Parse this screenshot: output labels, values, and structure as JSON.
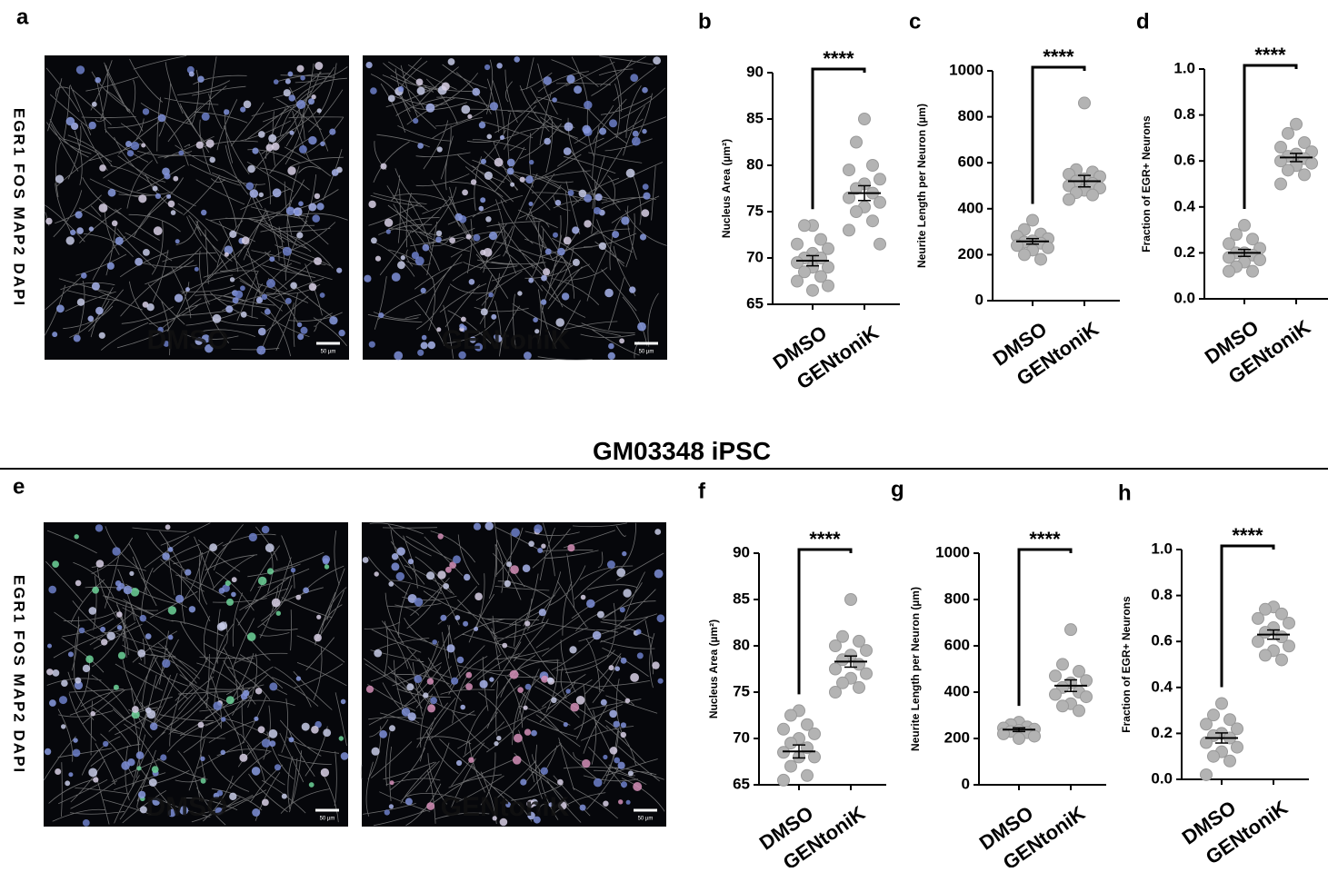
{
  "panel_labels": [
    "a",
    "b",
    "c",
    "d",
    "e",
    "f",
    "g",
    "h"
  ],
  "section_title": "GM03348 iPSC",
  "images": [
    {
      "channels": "EGR1 FOS MAP2 DAPI",
      "tiles": [
        {
          "label": "DMSO",
          "scale": "50 µm"
        },
        {
          "label": "GENtoniK",
          "scale": "50 µm"
        }
      ]
    },
    {
      "channels": "EGR1 FOS MAP2 DAPI",
      "tiles": [
        {
          "label": "DMSO",
          "scale": "50 µm"
        },
        {
          "label": "GENtoniK",
          "scale": "50 µm"
        }
      ]
    }
  ],
  "chart_data": [
    {
      "type": "dot",
      "y_label": "Nucleus Area (µm²)",
      "categories": [
        "DMSO",
        "GENtoniK"
      ],
      "color": "#b3b3b3",
      "annotation": "****",
      "points": [
        [
          73.5,
          73.5,
          72,
          71.5,
          71,
          70.5,
          70,
          70,
          69.5,
          69,
          69,
          68.5,
          68,
          67.5,
          67,
          66.5
        ],
        [
          85,
          82.5,
          80,
          79.5,
          78.5,
          78,
          77.5,
          77,
          76.5,
          76,
          75.5,
          75,
          74,
          73,
          71.5
        ]
      ],
      "mean": [
        69.7,
        77
      ],
      "sem": [
        0.55,
        0.8
      ],
      "ylim": [
        65,
        90
      ],
      "yticks": [
        65,
        70,
        75,
        80,
        85,
        90
      ]
    },
    {
      "type": "dot",
      "y_label": "Neurite Length per Neuron (µm)",
      "categories": [
        "DMSO",
        "GENtoniK"
      ],
      "color": "#b3b3b3",
      "annotation": "****",
      "points": [
        [
          350,
          310,
          290,
          280,
          270,
          260,
          255,
          250,
          240,
          230,
          220,
          200,
          180
        ],
        [
          860,
          570,
          560,
          550,
          540,
          530,
          520,
          510,
          500,
          490,
          480,
          470,
          460,
          440
        ]
      ],
      "mean": [
        258,
        520
      ],
      "sem": [
        12,
        25
      ],
      "ylim": [
        0,
        1000
      ],
      "yticks": [
        0,
        200,
        400,
        600,
        800,
        1000
      ]
    },
    {
      "type": "dot",
      "y_label": "Fraction of EGR+ Neurons",
      "categories": [
        "DMSO",
        "GENtoniK"
      ],
      "color": "#b3b3b3",
      "annotation": "****",
      "points": [
        [
          0.32,
          0.28,
          0.26,
          0.24,
          0.22,
          0.2,
          0.2,
          0.19,
          0.18,
          0.17,
          0.16,
          0.14,
          0.12,
          0.12
        ],
        [
          0.76,
          0.72,
          0.68,
          0.66,
          0.64,
          0.63,
          0.62,
          0.61,
          0.6,
          0.59,
          0.58,
          0.56,
          0.54,
          0.5
        ]
      ],
      "mean": [
        0.2,
        0.615
      ],
      "sem": [
        0.015,
        0.018
      ],
      "ylim": [
        0,
        1
      ],
      "yticks": [
        {
          "value": 0,
          "label": "0.0"
        },
        0.2,
        0.4,
        0.6,
        0.8,
        {
          "value": 1,
          "label": "1.0"
        }
      ]
    },
    {
      "type": "dot",
      "y_label": "Nucleus Area (µm²)",
      "categories": [
        "DMSO",
        "GENtoniK"
      ],
      "color": "#b3b3b3",
      "annotation": "****",
      "points": [
        [
          73,
          72.5,
          71.5,
          71,
          70.5,
          70,
          69.5,
          69,
          68.5,
          68,
          68,
          67,
          66,
          65.5
        ],
        [
          85,
          81,
          80.5,
          80,
          79.5,
          79,
          78.5,
          78,
          77.5,
          77,
          76.5,
          76,
          75.5,
          75
        ]
      ],
      "mean": [
        68.6,
        78.3
      ],
      "sem": [
        0.7,
        0.6
      ],
      "ylim": [
        65,
        90
      ],
      "yticks": [
        65,
        70,
        75,
        80,
        85,
        90
      ]
    },
    {
      "type": "dot",
      "y_label": "Neurite Length per Neuron (µm)",
      "categories": [
        "DMSO",
        "GENtoniK"
      ],
      "color": "#b3b3b3",
      "annotation": "****",
      "points": [
        [
          270,
          260,
          250,
          245,
          240,
          235,
          230,
          225,
          220,
          210,
          200
        ],
        [
          670,
          520,
          490,
          470,
          450,
          440,
          420,
          400,
          390,
          380,
          350,
          340,
          320
        ]
      ],
      "mean": [
        238,
        428
      ],
      "sem": [
        8,
        25
      ],
      "ylim": [
        0,
        1000
      ],
      "yticks": [
        0,
        200,
        400,
        600,
        800,
        1000
      ]
    },
    {
      "type": "dot",
      "y_label": "Fraction of EGR+ Neurons",
      "categories": [
        "DMSO",
        "GENtoniK"
      ],
      "color": "#b3b3b3",
      "annotation": "****",
      "points": [
        [
          0.33,
          0.28,
          0.26,
          0.24,
          0.22,
          0.2,
          0.19,
          0.18,
          0.16,
          0.14,
          0.12,
          0.1,
          0.08,
          0.02
        ],
        [
          0.75,
          0.74,
          0.72,
          0.7,
          0.68,
          0.66,
          0.64,
          0.62,
          0.6,
          0.58,
          0.56,
          0.54,
          0.52
        ]
      ],
      "mean": [
        0.18,
        0.63
      ],
      "sem": [
        0.022,
        0.02
      ],
      "ylim": [
        0,
        1
      ],
      "yticks": [
        {
          "value": 0,
          "label": "0.0"
        },
        0.2,
        0.4,
        0.6,
        0.8,
        {
          "value": 1,
          "label": "1.0"
        }
      ]
    }
  ]
}
